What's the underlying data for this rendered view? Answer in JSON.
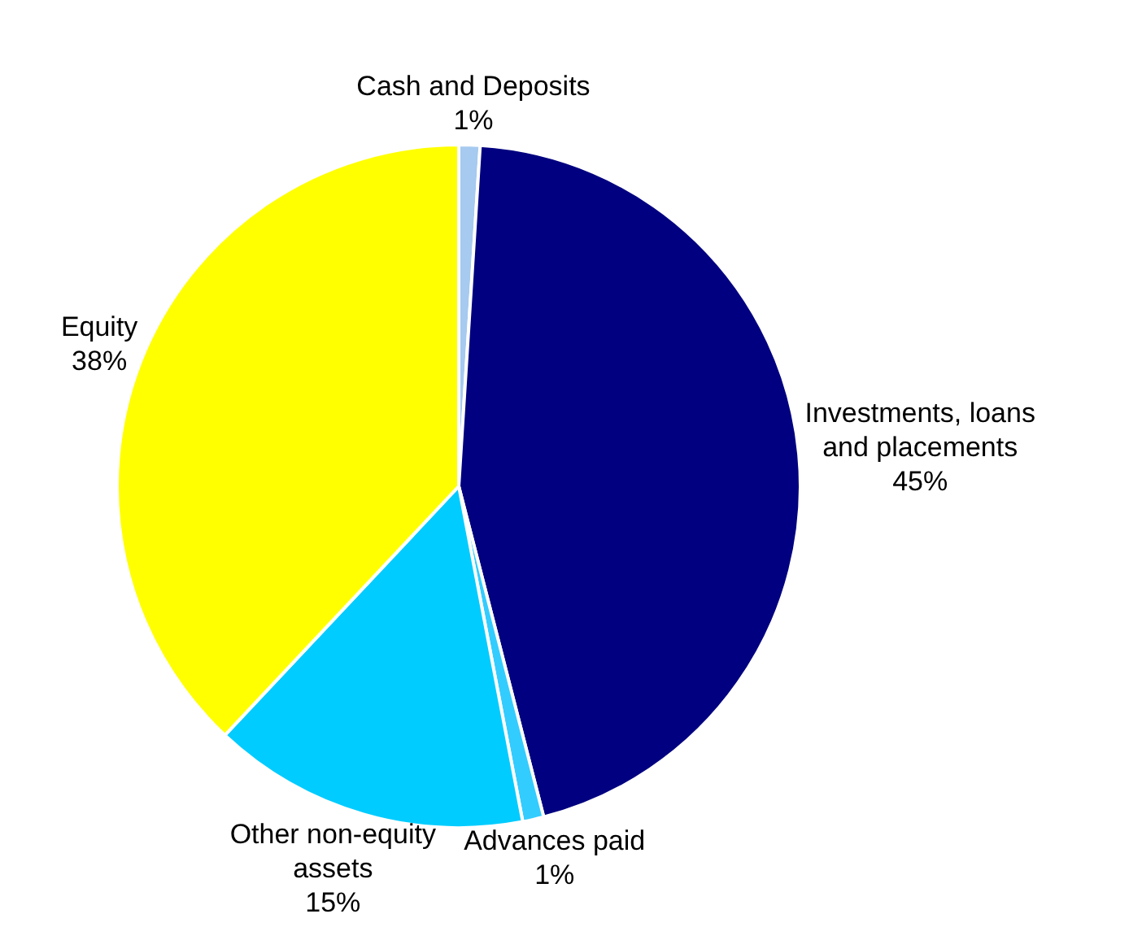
{
  "chart_data": {
    "type": "pie",
    "categories": [
      "Cash and Deposits",
      "Investments, loans and placements",
      "Advances paid",
      "Other non-equity assets",
      "Equity"
    ],
    "values": [
      1,
      45,
      1,
      15,
      38
    ],
    "value_labels": [
      "1%",
      "45%",
      "1%",
      "15%",
      "38%"
    ],
    "colors": [
      "#a6caf0",
      "#000080",
      "#33ccff",
      "#00ccff",
      "#ffff00"
    ],
    "legend": false
  }
}
